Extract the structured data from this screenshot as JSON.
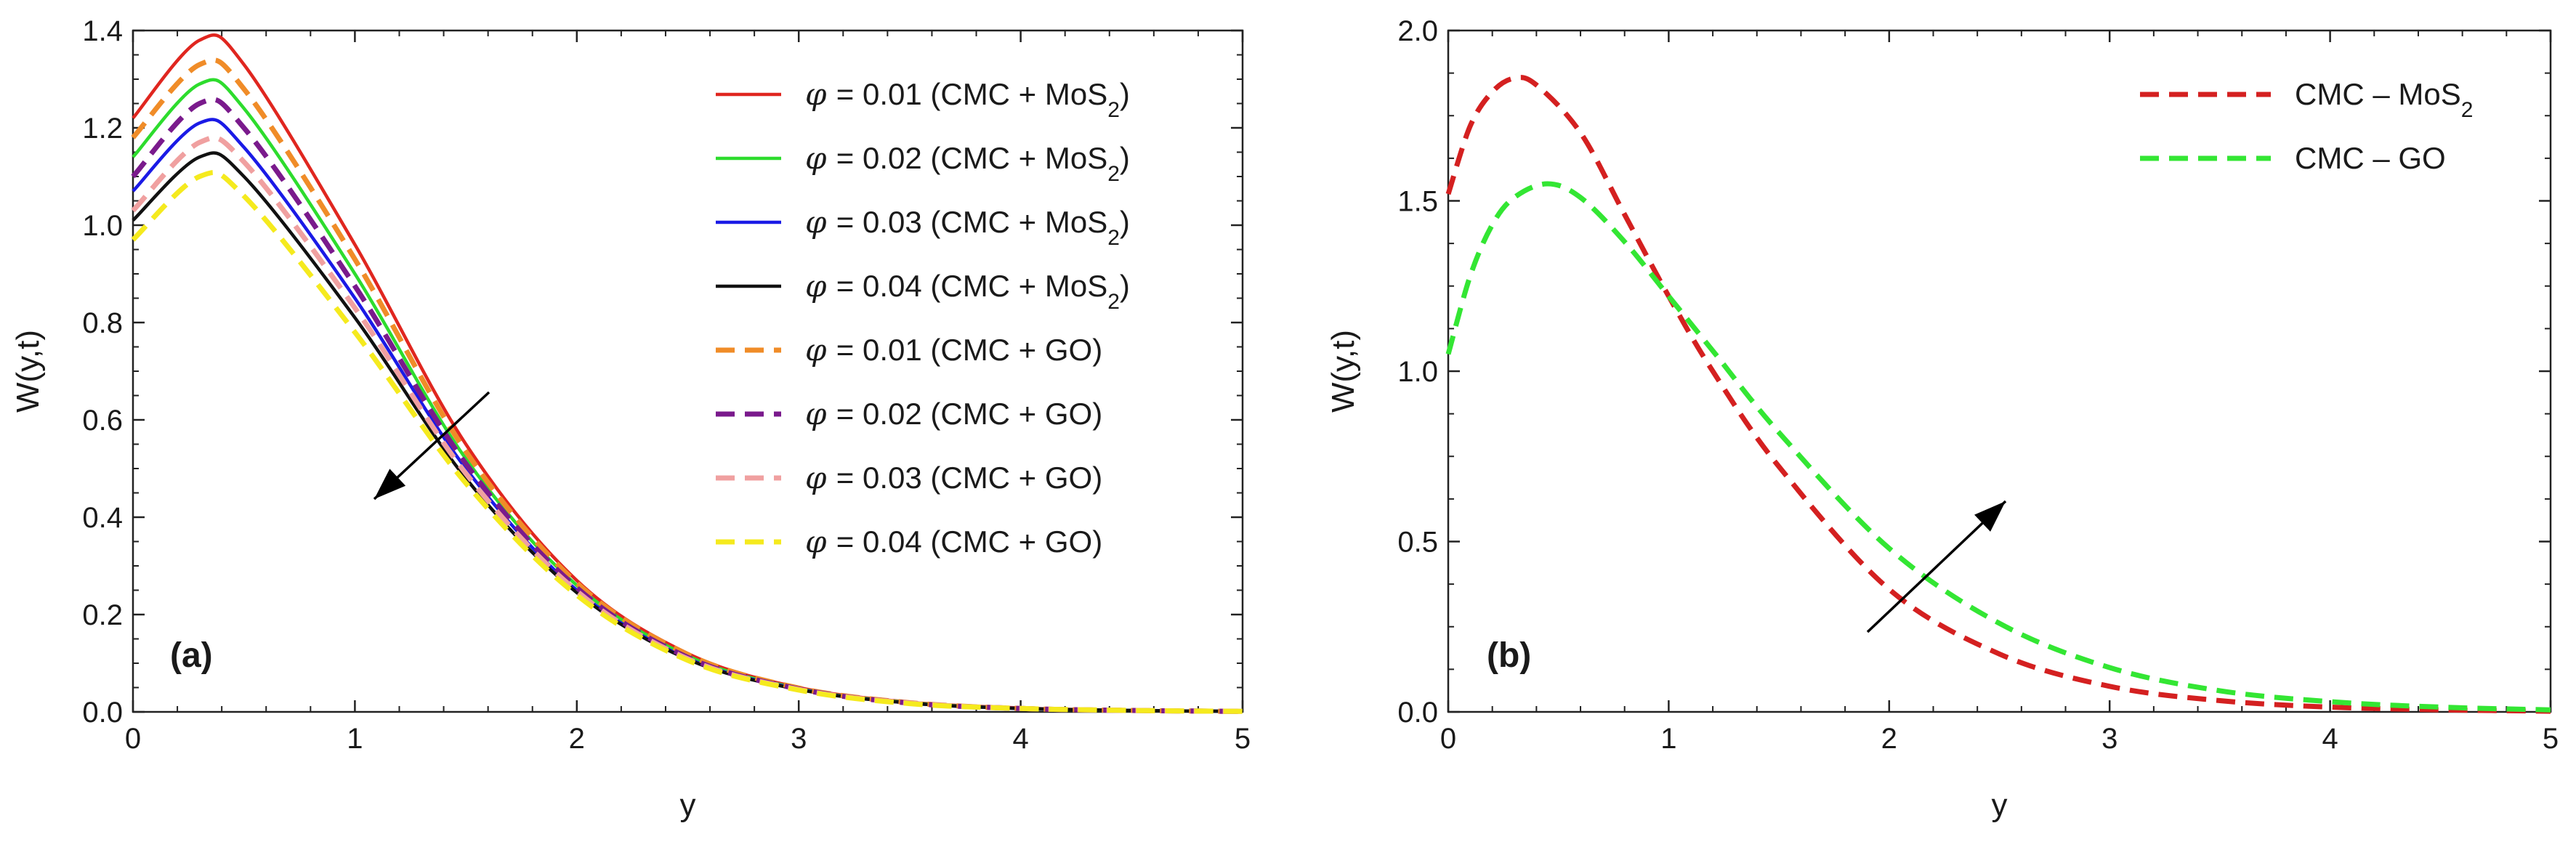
{
  "chart_data": [
    {
      "type": "line",
      "panel_label": "(a)",
      "xlabel": "y",
      "ylabel": "W(y,t)",
      "xlim": [
        0,
        5
      ],
      "ylim": [
        0,
        1.4
      ],
      "xticks": [
        0,
        1,
        2,
        3,
        4,
        5
      ],
      "yticks": [
        0.0,
        0.2,
        0.4,
        0.6,
        0.8,
        1.0,
        1.2,
        1.4
      ],
      "xtick_labels": [
        "0",
        "1",
        "2",
        "3",
        "4",
        "5"
      ],
      "ytick_labels": [
        "0.0",
        "0.2",
        "0.4",
        "0.6",
        "0.8",
        "1.0",
        "1.2",
        "1.4"
      ],
      "legend_position": "top-right",
      "annotation": "arrow pointing down-left: W decreases as φ increases",
      "x": [
        0,
        0.3,
        0.5,
        1.0,
        1.5,
        2.0,
        2.5,
        3.0,
        3.5,
        4.0,
        4.5,
        5.0
      ],
      "series": [
        {
          "name": "φ = 0.01 (CMC + MoS2)",
          "symbol": "φ",
          "label_rest": "= 0.01  (CMC + MoS",
          "subscript": "2",
          "label_end": ")",
          "color": "#e0261f",
          "dash": "solid",
          "values": [
            1.22,
            1.38,
            1.33,
            0.96,
            0.55,
            0.27,
            0.12,
            0.05,
            0.02,
            0.008,
            0.003,
            0.001
          ]
        },
        {
          "name": "φ = 0.02 (CMC + MoS2)",
          "symbol": "φ",
          "label_rest": "= 0.02  (CMC + MoS",
          "subscript": "2",
          "label_end": ")",
          "color": "#2ddc2d",
          "dash": "solid",
          "values": [
            1.14,
            1.29,
            1.24,
            0.9,
            0.52,
            0.26,
            0.115,
            0.048,
            0.019,
            0.007,
            0.003,
            0.001
          ]
        },
        {
          "name": "φ = 0.03 (CMC + MoS2)",
          "symbol": "φ",
          "label_rest": "= 0.03  (CMC + MoS",
          "subscript": "2",
          "label_end": ")",
          "color": "#1a1ae6",
          "dash": "solid",
          "values": [
            1.07,
            1.21,
            1.16,
            0.85,
            0.5,
            0.25,
            0.11,
            0.047,
            0.018,
            0.007,
            0.003,
            0.001
          ]
        },
        {
          "name": "φ = 0.04 (CMC + MoS2)",
          "symbol": "φ",
          "label_rest": "= 0.04  (CMC + MoS",
          "subscript": "2",
          "label_end": ")",
          "color": "#111111",
          "dash": "solid",
          "values": [
            1.01,
            1.14,
            1.1,
            0.81,
            0.48,
            0.245,
            0.108,
            0.046,
            0.018,
            0.007,
            0.003,
            0.001
          ]
        },
        {
          "name": "φ = 0.01 (CMC + GO)",
          "symbol": "φ",
          "label_rest": "= 0.01  (CMC + GO)",
          "subscript": "",
          "label_end": "",
          "color": "#f08c28",
          "dash": "dashed",
          "values": [
            1.18,
            1.33,
            1.28,
            0.93,
            0.535,
            0.265,
            0.118,
            0.049,
            0.019,
            0.007,
            0.003,
            0.001
          ]
        },
        {
          "name": "φ = 0.02 (CMC + GO)",
          "symbol": "φ",
          "label_rest": "= 0.02  (CMC + GO)",
          "subscript": "",
          "label_end": "",
          "color": "#7a1a8c",
          "dash": "dashed",
          "values": [
            1.1,
            1.25,
            1.2,
            0.875,
            0.51,
            0.255,
            0.112,
            0.047,
            0.018,
            0.007,
            0.003,
            0.001
          ]
        },
        {
          "name": "φ = 0.03 (CMC + GO)",
          "symbol": "φ",
          "label_rest": "= 0.03  (CMC + GO)",
          "subscript": "",
          "label_end": "",
          "color": "#f0a0a0",
          "dash": "dashed",
          "values": [
            1.03,
            1.17,
            1.13,
            0.83,
            0.49,
            0.248,
            0.109,
            0.046,
            0.018,
            0.007,
            0.003,
            0.001
          ]
        },
        {
          "name": "φ = 0.04 (CMC + GO)",
          "symbol": "φ",
          "label_rest": "= 0.04  (CMC + GO)",
          "subscript": "",
          "label_end": "",
          "color": "#f5ea1e",
          "dash": "dashed",
          "values": [
            0.97,
            1.1,
            1.06,
            0.78,
            0.47,
            0.24,
            0.106,
            0.045,
            0.017,
            0.007,
            0.003,
            0.001
          ]
        }
      ]
    },
    {
      "type": "line",
      "panel_label": "(b)",
      "xlabel": "y",
      "ylabel": "W(y,t)",
      "xlim": [
        0,
        5
      ],
      "ylim": [
        0,
        2.0
      ],
      "xticks": [
        0,
        1,
        2,
        3,
        4,
        5
      ],
      "yticks": [
        0.0,
        0.5,
        1.0,
        1.5,
        2.0
      ],
      "xtick_labels": [
        "0",
        "1",
        "2",
        "3",
        "4",
        "5"
      ],
      "ytick_labels": [
        "0.0",
        "0.5",
        "1.0",
        "1.5",
        "2.0"
      ],
      "legend_position": "top-right",
      "annotation": "arrow pointing up-right across the curves",
      "series": [
        {
          "name": "CMC – MoS2",
          "label_rest": "CMC – MoS",
          "subscript": "2",
          "label_end": "",
          "color": "#d42020",
          "dash": "dashed",
          "x": [
            0,
            0.1,
            0.2,
            0.3,
            0.4,
            0.6,
            0.8,
            1.0,
            1.2,
            1.5,
            2.0,
            2.5,
            3.0,
            3.5,
            4.0,
            4.5,
            5.0
          ],
          "values": [
            1.52,
            1.72,
            1.82,
            1.86,
            1.84,
            1.7,
            1.46,
            1.22,
            1.0,
            0.72,
            0.36,
            0.17,
            0.075,
            0.033,
            0.014,
            0.006,
            0.002
          ]
        },
        {
          "name": "CMC – GO",
          "label_rest": "CMC – GO",
          "subscript": "",
          "label_end": "",
          "color": "#33e633",
          "dash": "dashed",
          "x": [
            0,
            0.1,
            0.2,
            0.3,
            0.45,
            0.6,
            0.8,
            1.0,
            1.2,
            1.5,
            2.0,
            2.5,
            3.0,
            3.5,
            4.0,
            4.5,
            5.0
          ],
          "values": [
            1.05,
            1.28,
            1.43,
            1.51,
            1.55,
            1.51,
            1.38,
            1.22,
            1.06,
            0.82,
            0.48,
            0.26,
            0.13,
            0.062,
            0.03,
            0.014,
            0.006
          ]
        }
      ]
    }
  ]
}
